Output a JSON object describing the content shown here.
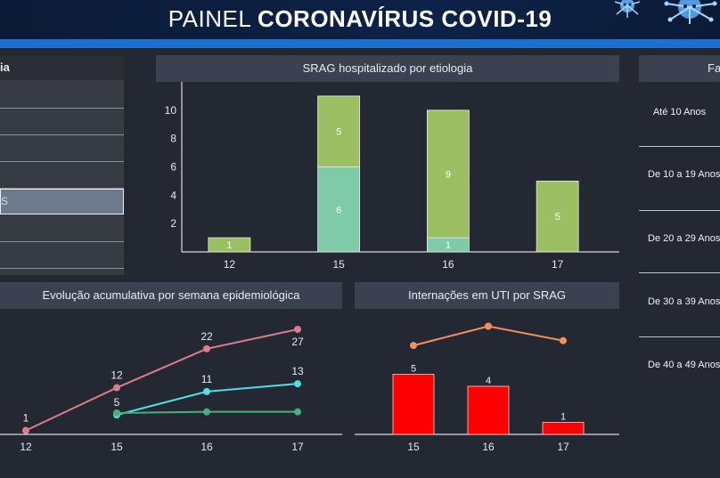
{
  "header": {
    "title_light": "PAINEL",
    "title_bold": "CORONAVÍRUS COVID-19",
    "icons": [
      "virus-icon",
      "virus-icon"
    ]
  },
  "left_panel": {
    "header_fragment": "ia",
    "selected_fragment": "S"
  },
  "panels": {
    "srag_title": "SRAG hospitalizado por etiologia",
    "evolucao_title": "Evolução acumulativa por semana epidemiológica",
    "uti_title": "Internações em UTI por SRAG",
    "faixa_fragment": "Fa"
  },
  "age_groups": [
    "Até 10 Anos",
    "De 10 a 19 Anos",
    "De 20 a 29 Anos",
    "De 30 a 39 Anos",
    "De 40 a 49 Anos"
  ],
  "colors": {
    "bar_green": "#9cbf63",
    "bar_teal": "#7fcaa8",
    "line_pink": "#e07a8e",
    "line_cyan": "#4de0e6",
    "line_green": "#4ab07a",
    "uti_bar": "#ff0000",
    "uti_line": "#f0925e"
  },
  "chart_data": [
    {
      "type": "bar",
      "stacked": true,
      "title": "SRAG hospitalizado por etiologia",
      "categories": [
        "12",
        "15",
        "16",
        "17"
      ],
      "series": [
        {
          "values": [
            0,
            6,
            1,
            0
          ]
        },
        {
          "values": [
            1,
            5,
            9,
            5
          ]
        }
      ],
      "y_ticks": [
        2,
        4,
        6,
        8,
        10
      ],
      "ylim": [
        0,
        12
      ]
    },
    {
      "type": "line",
      "title": "Evolução acumulativa por semana epidemiológica",
      "categories": [
        "12",
        "15",
        "16",
        "17"
      ],
      "series": [
        {
          "values": [
            1,
            12,
            22,
            27
          ],
          "labels": [
            true,
            true,
            true,
            true
          ]
        },
        {
          "values": [
            null,
            5,
            11,
            13
          ],
          "labels": [
            false,
            true,
            true,
            true
          ]
        },
        {
          "values": [
            null,
            5.5,
            5.8,
            5.8
          ],
          "labels": [
            false,
            false,
            false,
            false
          ]
        }
      ],
      "ylim": [
        0,
        30
      ]
    },
    {
      "type": "bar",
      "title": "Internações em UTI por SRAG",
      "categories": [
        "15",
        "16",
        "17"
      ],
      "values": [
        5,
        4,
        1
      ],
      "ylim": [
        0,
        10
      ],
      "overlay_line": {
        "values": [
          7.4,
          9.0,
          7.8
        ]
      }
    }
  ]
}
